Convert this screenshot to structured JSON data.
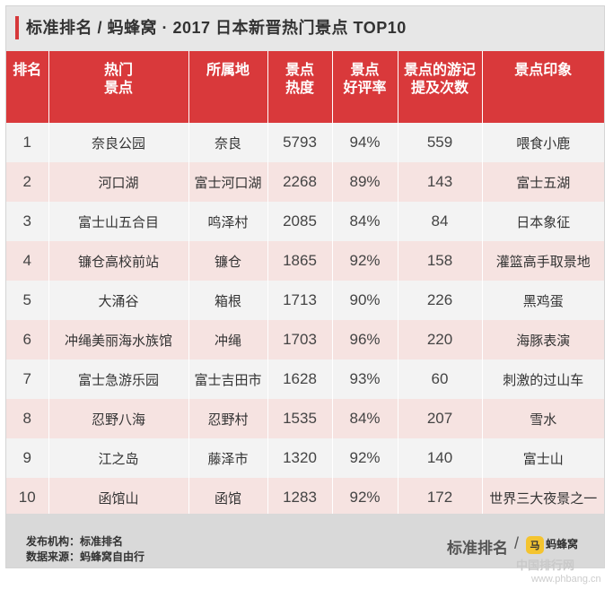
{
  "title": "标准排名 / 蚂蜂窝 · 2017 日本新晋热门景点 TOP10",
  "headers": [
    "排名",
    "热门\n景点",
    "所属地",
    "景点\n热度",
    "景点\n好评率",
    "景点的游记\n提及次数",
    "景点印象"
  ],
  "rows": [
    {
      "rank": "1",
      "spot": "奈良公园",
      "location": "奈良",
      "heat": "5793",
      "rating": "94%",
      "mentions": "559",
      "impression": "喂食小鹿"
    },
    {
      "rank": "2",
      "spot": "河口湖",
      "location": "富士河口湖",
      "heat": "2268",
      "rating": "89%",
      "mentions": "143",
      "impression": "富士五湖"
    },
    {
      "rank": "3",
      "spot": "富士山五合目",
      "location": "鸣泽村",
      "heat": "2085",
      "rating": "84%",
      "mentions": "84",
      "impression": "日本象征"
    },
    {
      "rank": "4",
      "spot": "镰仓高校前站",
      "location": "镰仓",
      "heat": "1865",
      "rating": "92%",
      "mentions": "158",
      "impression": "灌篮高手取景地"
    },
    {
      "rank": "5",
      "spot": "大涌谷",
      "location": "箱根",
      "heat": "1713",
      "rating": "90%",
      "mentions": "226",
      "impression": "黑鸡蛋"
    },
    {
      "rank": "6",
      "spot": "冲绳美丽海水族馆",
      "location": "冲绳",
      "heat": "1703",
      "rating": "96%",
      "mentions": "220",
      "impression": "海豚表演"
    },
    {
      "rank": "7",
      "spot": "富士急游乐园",
      "location": "富士吉田市",
      "heat": "1628",
      "rating": "93%",
      "mentions": "60",
      "impression": "刺激的过山车"
    },
    {
      "rank": "8",
      "spot": "忍野八海",
      "location": "忍野村",
      "heat": "1535",
      "rating": "84%",
      "mentions": "207",
      "impression": "雪水"
    },
    {
      "rank": "9",
      "spot": "江之岛",
      "location": "藤泽市",
      "heat": "1320",
      "rating": "92%",
      "mentions": "140",
      "impression": "富士山"
    },
    {
      "rank": "10",
      "spot": "函馆山",
      "location": "函馆",
      "heat": "1283",
      "rating": "92%",
      "mentions": "172",
      "impression": "世界三大夜景之一"
    }
  ],
  "footer": {
    "publisher": "发布机构：标准排名",
    "source": "数据来源：蚂蜂窝自由行",
    "brand": "标准排名",
    "slash": "/",
    "mfw_icon": "马",
    "mfw_name": "蚂蜂窝"
  },
  "watermark": {
    "site_name": "中国排行网",
    "url": "www.phbang.cn"
  },
  "colors": {
    "header_red": "#d9393b",
    "row_pink": "#f6e3e1",
    "row_gray": "#f3f3f3",
    "accent": "#d6383a"
  }
}
